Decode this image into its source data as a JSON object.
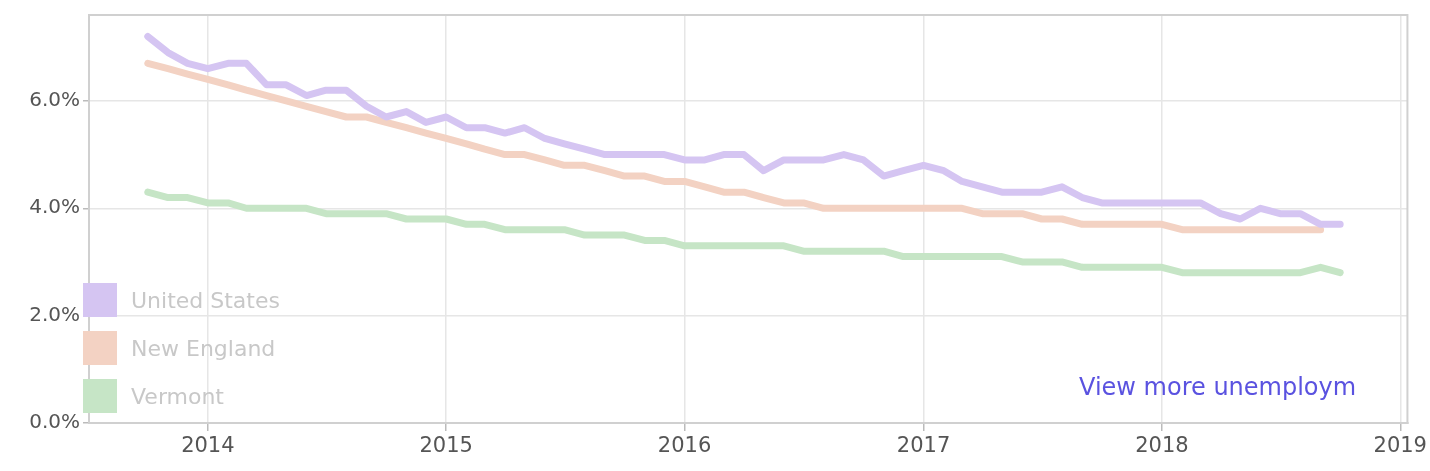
{
  "chart_data": {
    "type": "line",
    "x": [
      "2013-10",
      "2013-11",
      "2013-12",
      "2014-01",
      "2014-02",
      "2014-03",
      "2014-04",
      "2014-05",
      "2014-06",
      "2014-07",
      "2014-08",
      "2014-09",
      "2014-10",
      "2014-11",
      "2014-12",
      "2015-01",
      "2015-02",
      "2015-03",
      "2015-04",
      "2015-05",
      "2015-06",
      "2015-07",
      "2015-08",
      "2015-09",
      "2015-10",
      "2015-11",
      "2015-12",
      "2016-01",
      "2016-02",
      "2016-03",
      "2016-04",
      "2016-05",
      "2016-06",
      "2016-07",
      "2016-08",
      "2016-09",
      "2016-10",
      "2016-11",
      "2016-12",
      "2017-01",
      "2017-02",
      "2017-03",
      "2017-04",
      "2017-05",
      "2017-06",
      "2017-07",
      "2017-08",
      "2017-09",
      "2017-10",
      "2017-11",
      "2017-12",
      "2018-01",
      "2018-02",
      "2018-03",
      "2018-04",
      "2018-05",
      "2018-06",
      "2018-07",
      "2018-08",
      "2018-09",
      "2018-10"
    ],
    "series": [
      {
        "name": "United States",
        "color": "#d5c5f2",
        "values": [
          7.2,
          6.9,
          6.7,
          6.6,
          6.7,
          6.7,
          6.3,
          6.3,
          6.1,
          6.2,
          6.2,
          5.9,
          5.7,
          5.8,
          5.6,
          5.7,
          5.5,
          5.5,
          5.4,
          5.5,
          5.3,
          5.2,
          5.1,
          5.0,
          5.0,
          5.0,
          5.0,
          4.9,
          4.9,
          5.0,
          5.0,
          4.7,
          4.9,
          4.9,
          4.9,
          5.0,
          4.9,
          4.6,
          4.7,
          4.8,
          4.7,
          4.5,
          4.4,
          4.3,
          4.3,
          4.3,
          4.4,
          4.2,
          4.1,
          4.1,
          4.1,
          4.1,
          4.1,
          4.1,
          3.9,
          3.8,
          4.0,
          3.9,
          3.9,
          3.7,
          3.7
        ]
      },
      {
        "name": "New England",
        "color": "#f3d2c3",
        "values": [
          6.7,
          6.6,
          6.5,
          6.4,
          6.3,
          6.2,
          6.1,
          6.0,
          5.9,
          5.8,
          5.7,
          5.7,
          5.6,
          5.5,
          5.4,
          5.3,
          5.2,
          5.1,
          5.0,
          5.0,
          4.9,
          4.8,
          4.8,
          4.7,
          4.6,
          4.6,
          4.5,
          4.5,
          4.4,
          4.3,
          4.3,
          4.2,
          4.1,
          4.1,
          4.0,
          4.0,
          4.0,
          4.0,
          4.0,
          4.0,
          4.0,
          4.0,
          3.9,
          3.9,
          3.9,
          3.8,
          3.8,
          3.7,
          3.7,
          3.7,
          3.7,
          3.7,
          3.6,
          3.6,
          3.6,
          3.6,
          3.6,
          3.6,
          3.6,
          3.6,
          null
        ]
      },
      {
        "name": "Vermont",
        "color": "#c6e5c6",
        "values": [
          4.3,
          4.2,
          4.2,
          4.1,
          4.1,
          4.0,
          4.0,
          4.0,
          4.0,
          3.9,
          3.9,
          3.9,
          3.9,
          3.8,
          3.8,
          3.8,
          3.7,
          3.7,
          3.6,
          3.6,
          3.6,
          3.6,
          3.5,
          3.5,
          3.5,
          3.4,
          3.4,
          3.3,
          3.3,
          3.3,
          3.3,
          3.3,
          3.3,
          3.2,
          3.2,
          3.2,
          3.2,
          3.2,
          3.1,
          3.1,
          3.1,
          3.1,
          3.1,
          3.1,
          3.0,
          3.0,
          3.0,
          2.9,
          2.9,
          2.9,
          2.9,
          2.9,
          2.8,
          2.8,
          2.8,
          2.8,
          2.8,
          2.8,
          2.8,
          2.9,
          2.8
        ]
      }
    ],
    "xlim": [
      "2013-07-03",
      "2019-01-12"
    ],
    "xticks": [
      {
        "value": "2014",
        "label": "2014"
      },
      {
        "value": "2015",
        "label": "2015"
      },
      {
        "value": "2016",
        "label": "2016"
      },
      {
        "value": "2017",
        "label": "2017"
      },
      {
        "value": "2018",
        "label": "2018"
      },
      {
        "value": "2019",
        "label": "2019"
      }
    ],
    "ylim": [
      0,
      7.6
    ],
    "yticks": [
      {
        "value": 0,
        "label": "0.0%"
      },
      {
        "value": 2,
        "label": "2.0%"
      },
      {
        "value": 4,
        "label": "4.0%"
      },
      {
        "value": 6,
        "label": "6.0%"
      }
    ],
    "grid": true,
    "legend": "bottom left",
    "marker": "none",
    "line_style": "solid",
    "annotations": [
      "View more unemploym"
    ]
  }
}
